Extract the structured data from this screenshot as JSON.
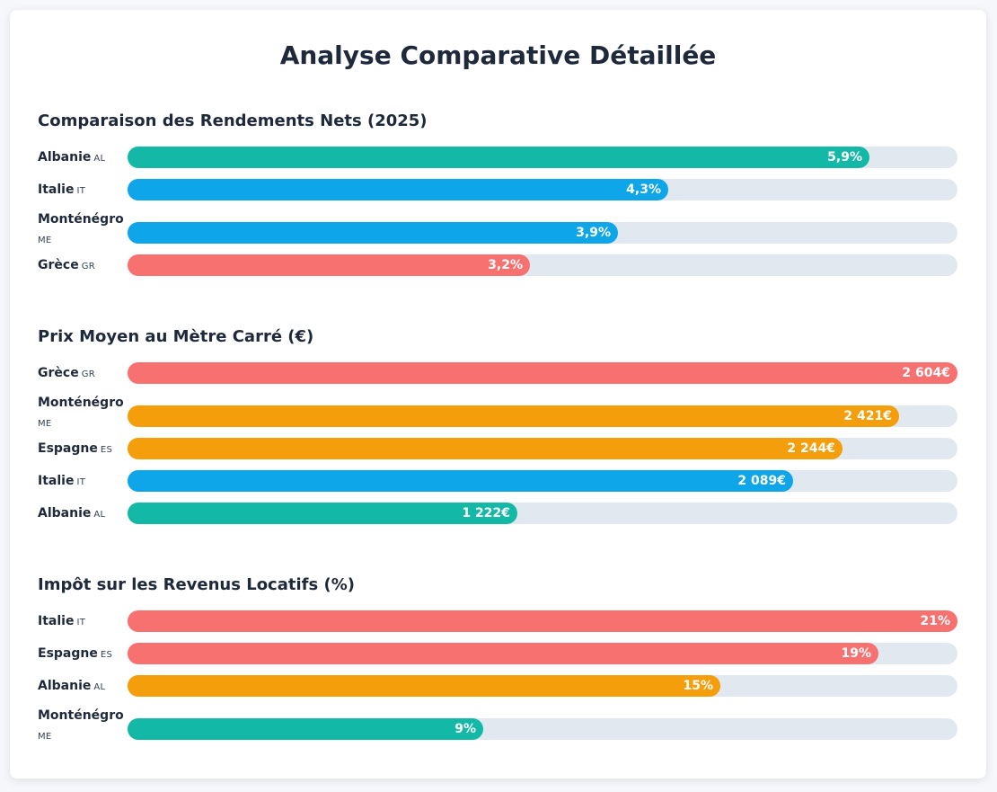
{
  "title": "Analyse Comparative Détaillée",
  "colors": {
    "teal": "#14b8a6",
    "blue": "#0ea5e9",
    "red": "#f87171",
    "orange": "#f59e0b",
    "track": "#e2e8f0"
  },
  "chart_data": [
    {
      "type": "bar",
      "title": "Comparaison des Rendements Nets (2025)",
      "categories": [
        "Albanie",
        "Italie",
        "Monténégro",
        "Grèce"
      ],
      "codes": [
        "AL",
        "IT",
        "ME",
        "GR"
      ],
      "values": [
        5.9,
        4.3,
        3.9,
        3.2
      ],
      "value_labels": [
        "5,9%",
        "4,3%",
        "3,9%",
        "3,2%"
      ],
      "colors": [
        "#14b8a6",
        "#0ea5e9",
        "#0ea5e9",
        "#f87171"
      ],
      "xlim": [
        0,
        6.6
      ]
    },
    {
      "type": "bar",
      "title": "Prix Moyen au Mètre Carré (€)",
      "categories": [
        "Grèce",
        "Monténégro",
        "Espagne",
        "Italie",
        "Albanie"
      ],
      "codes": [
        "GR",
        "ME",
        "ES",
        "IT",
        "AL"
      ],
      "values": [
        2604,
        2421,
        2244,
        2089,
        1222
      ],
      "value_labels": [
        "2 604€",
        "2 421€",
        "2 244€",
        "2 089€",
        "1 222€"
      ],
      "colors": [
        "#f87171",
        "#f59e0b",
        "#f59e0b",
        "#0ea5e9",
        "#14b8a6"
      ],
      "xlim": [
        0,
        2604
      ]
    },
    {
      "type": "bar",
      "title": "Impôt sur les Revenus Locatifs (%)",
      "categories": [
        "Italie",
        "Espagne",
        "Albanie",
        "Monténégro"
      ],
      "codes": [
        "IT",
        "ES",
        "AL",
        "ME"
      ],
      "values": [
        21,
        19,
        15,
        9
      ],
      "value_labels": [
        "21%",
        "19%",
        "15%",
        "9%"
      ],
      "colors": [
        "#f87171",
        "#f87171",
        "#f59e0b",
        "#14b8a6"
      ],
      "xlim": [
        0,
        21
      ]
    }
  ]
}
